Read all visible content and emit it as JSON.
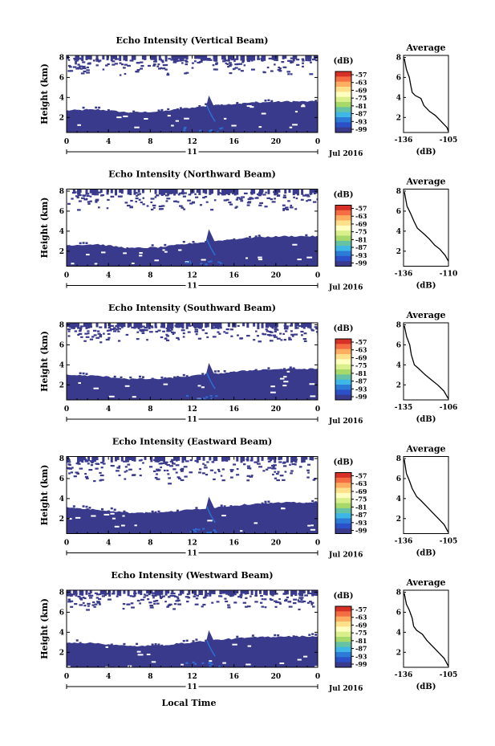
{
  "figure": {
    "date_label": "Jul 2016",
    "day_label": "11",
    "xlabel": "Local Time"
  },
  "colorbar": {
    "unit": "(dB)",
    "ticks": [
      "-57",
      "-63",
      "-69",
      "-75",
      "-81",
      "-87",
      "-93",
      "-99"
    ],
    "colors": [
      "#d73027",
      "#f46d43",
      "#fdae61",
      "#fee08b",
      "#ffffbf",
      "#d9ef8b",
      "#a6d96a",
      "#66c2a5",
      "#3fb7e6",
      "#2c7bd6",
      "#2b50c8",
      "#3a3a8c"
    ]
  },
  "colors": {
    "echo": "#3a3a8c",
    "echo_bright": "#2b6fd6"
  },
  "chart_data": [
    {
      "type": "heatmap",
      "title": "Echo Intensity (Vertical Beam)",
      "ylabel": "Height (km)",
      "ylim": [
        0.5,
        8.2
      ],
      "yticks": [
        "2",
        "4",
        "6",
        "8"
      ],
      "xlim": [
        0,
        24
      ],
      "xticks": [
        "0",
        "4",
        "8",
        "12",
        "16",
        "20",
        "0"
      ],
      "layer_top_km": [
        [
          0,
          2.7
        ],
        [
          3,
          2.8
        ],
        [
          6,
          2.5
        ],
        [
          9,
          2.6
        ],
        [
          12,
          3.0
        ],
        [
          15,
          3.3
        ],
        [
          18,
          3.5
        ],
        [
          21,
          3.6
        ],
        [
          24,
          3.6
        ]
      ],
      "upper_clutter_km": [
        6.3,
        8.0
      ],
      "avg": {
        "title": "Average",
        "xlabel": "(dB)",
        "xticks": [
          "-136",
          "-105"
        ],
        "xlim": [
          -136,
          -105
        ],
        "ylim": [
          0.5,
          8.2
        ],
        "yticks": [
          "2",
          "4",
          "6",
          "8"
        ],
        "profile": [
          [
            -135.5,
            7.9
          ],
          [
            -134,
            6.8
          ],
          [
            -132,
            6.0
          ],
          [
            -131,
            5.2
          ],
          [
            -130,
            4.5
          ],
          [
            -128,
            4.2
          ],
          [
            -124,
            3.9
          ],
          [
            -122,
            3.2
          ],
          [
            -118,
            2.6
          ],
          [
            -114,
            2.2
          ],
          [
            -110,
            1.6
          ],
          [
            -106,
            1.0
          ],
          [
            -105,
            0.6
          ]
        ]
      }
    },
    {
      "type": "heatmap",
      "title": "Echo Intensity (Northward Beam)",
      "ylabel": "Height (km)",
      "ylim": [
        0.5,
        8.2
      ],
      "yticks": [
        "2",
        "4",
        "6",
        "8"
      ],
      "xlim": [
        0,
        24
      ],
      "xticks": [
        "0",
        "4",
        "8",
        "12",
        "16",
        "20",
        "0"
      ],
      "layer_top_km": [
        [
          0,
          2.6
        ],
        [
          3,
          2.7
        ],
        [
          6,
          2.3
        ],
        [
          9,
          2.4
        ],
        [
          12,
          2.8
        ],
        [
          15,
          3.1
        ],
        [
          18,
          3.4
        ],
        [
          21,
          3.5
        ],
        [
          24,
          3.5
        ]
      ],
      "upper_clutter_km": [
        6.0,
        8.0
      ],
      "avg": {
        "title": "Average",
        "xlabel": "(dB)",
        "xticks": [
          "-136",
          "-110"
        ],
        "xlim": [
          -136,
          -110
        ],
        "ylim": [
          0.5,
          8.2
        ],
        "yticks": [
          "2",
          "4",
          "6",
          "8"
        ],
        "profile": [
          [
            -135.5,
            7.9
          ],
          [
            -134,
            6.5
          ],
          [
            -132,
            5.8
          ],
          [
            -130,
            5.0
          ],
          [
            -128,
            4.3
          ],
          [
            -124,
            3.7
          ],
          [
            -121,
            3.2
          ],
          [
            -118,
            2.6
          ],
          [
            -115,
            2.2
          ],
          [
            -112,
            1.6
          ],
          [
            -110,
            1.0
          ]
        ]
      }
    },
    {
      "type": "heatmap",
      "title": "Echo Intensity (Southward Beam)",
      "ylabel": "Height (km)",
      "ylim": [
        0.5,
        8.2
      ],
      "yticks": [
        "2",
        "4",
        "6",
        "8"
      ],
      "xlim": [
        0,
        24
      ],
      "xticks": [
        "0",
        "4",
        "8",
        "12",
        "16",
        "20",
        "0"
      ],
      "layer_top_km": [
        [
          0,
          3.0
        ],
        [
          3,
          2.9
        ],
        [
          6,
          2.6
        ],
        [
          9,
          2.6
        ],
        [
          12,
          2.9
        ],
        [
          15,
          3.2
        ],
        [
          18,
          3.5
        ],
        [
          21,
          3.6
        ],
        [
          24,
          3.6
        ]
      ],
      "upper_clutter_km": [
        6.3,
        8.0
      ],
      "avg": {
        "title": "Average",
        "xlabel": "(dB)",
        "xticks": [
          "-135",
          "-106"
        ],
        "xlim": [
          -135,
          -106
        ],
        "ylim": [
          0.5,
          8.2
        ],
        "yticks": [
          "2",
          "4",
          "6",
          "8"
        ],
        "profile": [
          [
            -134.5,
            7.9
          ],
          [
            -133,
            6.8
          ],
          [
            -131,
            6.0
          ],
          [
            -130,
            5.0
          ],
          [
            -128,
            4.0
          ],
          [
            -125,
            3.6
          ],
          [
            -121,
            3.0
          ],
          [
            -117,
            2.5
          ],
          [
            -113,
            2.0
          ],
          [
            -109,
            1.4
          ],
          [
            -106,
            0.6
          ]
        ]
      }
    },
    {
      "type": "heatmap",
      "title": "Echo Intensity (Eastward Beam)",
      "ylabel": "Height (km)",
      "ylim": [
        0.5,
        8.2
      ],
      "yticks": [
        "2",
        "4",
        "6",
        "8"
      ],
      "xlim": [
        0,
        24
      ],
      "xticks": [
        "0",
        "4",
        "8",
        "12",
        "16",
        "20",
        "0"
      ],
      "layer_top_km": [
        [
          0,
          3.1
        ],
        [
          3,
          2.9
        ],
        [
          6,
          2.6
        ],
        [
          9,
          2.6
        ],
        [
          12,
          2.9
        ],
        [
          15,
          3.2
        ],
        [
          18,
          3.5
        ],
        [
          21,
          3.6
        ],
        [
          24,
          3.6
        ]
      ],
      "upper_clutter_km": [
        5.5,
        8.0
      ],
      "avg": {
        "title": "Average",
        "xlabel": "(dB)",
        "xticks": [
          "-136",
          "-105"
        ],
        "xlim": [
          -136,
          -105
        ],
        "ylim": [
          0.5,
          8.2
        ],
        "yticks": [
          "2",
          "4",
          "6",
          "8"
        ],
        "profile": [
          [
            -135.5,
            7.9
          ],
          [
            -134,
            6.5
          ],
          [
            -132,
            5.8
          ],
          [
            -130,
            5.0
          ],
          [
            -127,
            4.2
          ],
          [
            -124,
            3.8
          ],
          [
            -120,
            3.2
          ],
          [
            -116,
            2.6
          ],
          [
            -112,
            2.0
          ],
          [
            -108,
            1.4
          ],
          [
            -105,
            0.6
          ]
        ]
      }
    },
    {
      "type": "heatmap",
      "title": "Echo Intensity (Westward Beam)",
      "ylabel": "Height (km)",
      "ylim": [
        0.5,
        8.2
      ],
      "yticks": [
        "2",
        "4",
        "6",
        "8"
      ],
      "xlim": [
        0,
        24
      ],
      "xticks": [
        "0",
        "4",
        "8",
        "12",
        "16",
        "20",
        "0"
      ],
      "layer_top_km": [
        [
          0,
          3.0
        ],
        [
          3,
          2.9
        ],
        [
          6,
          2.6
        ],
        [
          9,
          2.7
        ],
        [
          12,
          3.0
        ],
        [
          15,
          3.3
        ],
        [
          18,
          3.5
        ],
        [
          21,
          3.6
        ],
        [
          24,
          3.6
        ]
      ],
      "upper_clutter_km": [
        6.3,
        8.0
      ],
      "avg": {
        "title": "Average",
        "xlabel": "(dB)",
        "xticks": [
          "-136",
          "-105"
        ],
        "xlim": [
          -136,
          -105
        ],
        "ylim": [
          0.5,
          8.2
        ],
        "yticks": [
          "2",
          "4",
          "6",
          "8"
        ],
        "profile": [
          [
            -135.5,
            7.9
          ],
          [
            -134,
            6.8
          ],
          [
            -132,
            6.2
          ],
          [
            -130,
            5.4
          ],
          [
            -129,
            4.6
          ],
          [
            -127,
            4.2
          ],
          [
            -123,
            3.8
          ],
          [
            -120,
            3.2
          ],
          [
            -116,
            2.6
          ],
          [
            -112,
            2.0
          ],
          [
            -108,
            1.4
          ],
          [
            -105,
            0.6
          ]
        ]
      }
    }
  ]
}
